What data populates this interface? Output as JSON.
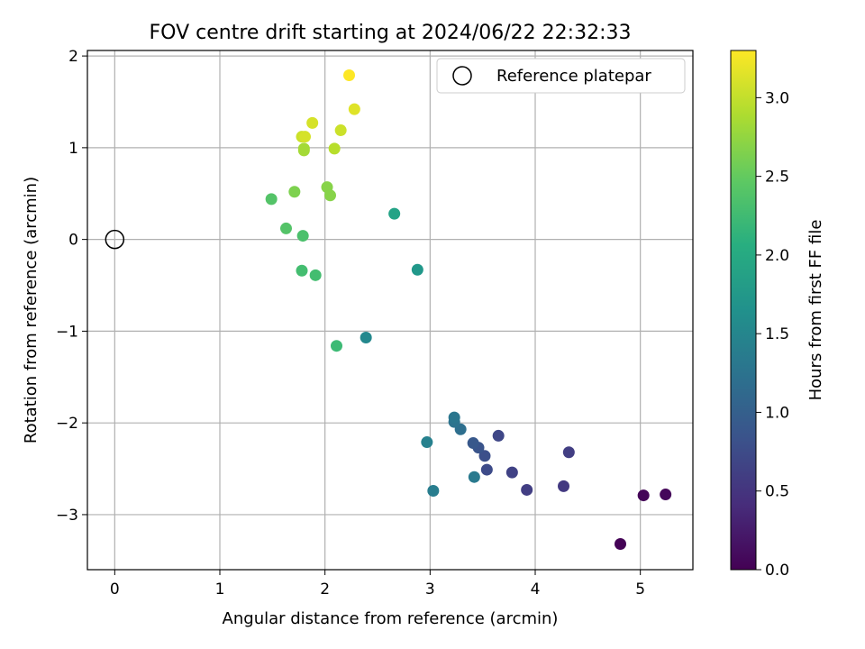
{
  "chart_data": {
    "type": "scatter",
    "title": "FOV centre drift starting at 2024/06/22 22:32:33",
    "xlabel": "Angular distance from reference (arcmin)",
    "ylabel": "Rotation from reference (arcmin)",
    "xlim": [
      -0.26,
      5.5
    ],
    "ylim": [
      -3.6,
      2.06
    ],
    "xticks": [
      0,
      1,
      2,
      3,
      4,
      5
    ],
    "xtick_labels": [
      "0",
      "1",
      "2",
      "3",
      "4",
      "5"
    ],
    "yticks": [
      -3,
      -2,
      -1,
      0,
      1,
      2
    ],
    "ytick_labels": [
      "−3",
      "−2",
      "−1",
      "0",
      "1",
      "2"
    ],
    "grid": true,
    "legend": {
      "position": "top-right",
      "entries": [
        {
          "label": "Reference platepar",
          "marker": "open-circle",
          "x": 0,
          "y": 0
        }
      ]
    },
    "colorbar": {
      "label": "Hours from first FF file",
      "colormap": "viridis",
      "range": [
        0,
        3.3
      ],
      "ticks": [
        0,
        0.5,
        1,
        1.5,
        2,
        2.5,
        3
      ],
      "tick_labels": [
        "0.0",
        "0.5",
        "1.0",
        "1.5",
        "2.0",
        "2.5",
        "3.0"
      ]
    },
    "points": [
      {
        "x": 4.81,
        "y": -3.32,
        "c": 0.02
      },
      {
        "x": 5.03,
        "y": -2.79,
        "c": 0.04
      },
      {
        "x": 5.24,
        "y": -2.78,
        "c": 0.06
      },
      {
        "x": 4.27,
        "y": -2.69,
        "c": 0.55
      },
      {
        "x": 4.32,
        "y": -2.32,
        "c": 0.6
      },
      {
        "x": 3.92,
        "y": -2.73,
        "c": 0.6
      },
      {
        "x": 3.78,
        "y": -2.54,
        "c": 0.65
      },
      {
        "x": 3.65,
        "y": -2.14,
        "c": 0.7
      },
      {
        "x": 3.54,
        "y": -2.51,
        "c": 0.75
      },
      {
        "x": 3.52,
        "y": -2.36,
        "c": 0.8
      },
      {
        "x": 3.46,
        "y": -2.27,
        "c": 0.85
      },
      {
        "x": 3.41,
        "y": -2.22,
        "c": 0.9
      },
      {
        "x": 3.29,
        "y": -2.07,
        "c": 1.2
      },
      {
        "x": 3.23,
        "y": -1.99,
        "c": 1.25
      },
      {
        "x": 3.23,
        "y": -1.94,
        "c": 1.3
      },
      {
        "x": 3.42,
        "y": -2.59,
        "c": 1.35
      },
      {
        "x": 3.03,
        "y": -2.74,
        "c": 1.4
      },
      {
        "x": 2.97,
        "y": -2.21,
        "c": 1.45
      },
      {
        "x": 2.39,
        "y": -1.07,
        "c": 1.55
      },
      {
        "x": 2.88,
        "y": -0.33,
        "c": 1.75
      },
      {
        "x": 2.66,
        "y": 0.28,
        "c": 1.9
      },
      {
        "x": 2.11,
        "y": -1.16,
        "c": 2.25
      },
      {
        "x": 1.91,
        "y": -0.39,
        "c": 2.3
      },
      {
        "x": 1.78,
        "y": -0.34,
        "c": 2.3
      },
      {
        "x": 1.79,
        "y": 0.04,
        "c": 2.35
      },
      {
        "x": 1.63,
        "y": 0.12,
        "c": 2.4
      },
      {
        "x": 1.49,
        "y": 0.44,
        "c": 2.4
      },
      {
        "x": 1.71,
        "y": 0.52,
        "c": 2.65
      },
      {
        "x": 2.02,
        "y": 0.57,
        "c": 2.7
      },
      {
        "x": 2.05,
        "y": 0.48,
        "c": 2.7
      },
      {
        "x": 1.8,
        "y": 0.97,
        "c": 2.85
      },
      {
        "x": 1.8,
        "y": 0.99,
        "c": 2.85
      },
      {
        "x": 2.09,
        "y": 0.99,
        "c": 2.95
      },
      {
        "x": 1.78,
        "y": 1.12,
        "c": 3.05
      },
      {
        "x": 1.81,
        "y": 1.12,
        "c": 3.1
      },
      {
        "x": 2.15,
        "y": 1.19,
        "c": 3.05
      },
      {
        "x": 1.88,
        "y": 1.27,
        "c": 3.1
      },
      {
        "x": 2.28,
        "y": 1.42,
        "c": 3.15
      },
      {
        "x": 2.23,
        "y": 1.79,
        "c": 3.3
      }
    ]
  }
}
